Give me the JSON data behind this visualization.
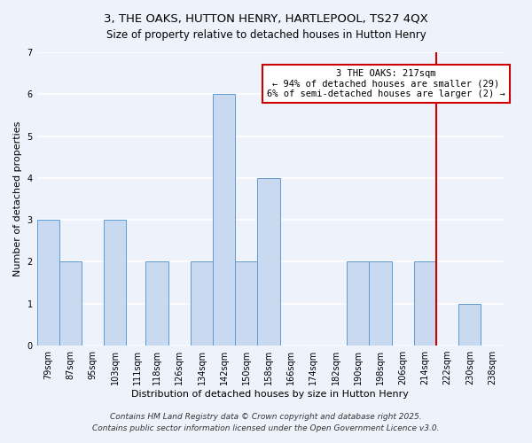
{
  "title": "3, THE OAKS, HUTTON HENRY, HARTLEPOOL, TS27 4QX",
  "subtitle": "Size of property relative to detached houses in Hutton Henry",
  "xlabel": "Distribution of detached houses by size in Hutton Henry",
  "ylabel": "Number of detached properties",
  "bin_labels": [
    "79sqm",
    "87sqm",
    "95sqm",
    "103sqm",
    "111sqm",
    "118sqm",
    "126sqm",
    "134sqm",
    "142sqm",
    "150sqm",
    "158sqm",
    "166sqm",
    "174sqm",
    "182sqm",
    "190sqm",
    "198sqm",
    "206sqm",
    "214sqm",
    "222sqm",
    "230sqm",
    "238sqm"
  ],
  "bar_values": [
    3,
    2,
    0,
    3,
    0,
    2,
    0,
    2,
    6,
    2,
    4,
    0,
    0,
    0,
    2,
    2,
    0,
    2,
    0,
    1,
    0
  ],
  "bar_color": "#c8d9f0",
  "bar_edge_color": "#5b9bd5",
  "vline_x_label": "214sqm",
  "vline_color": "#cc0000",
  "annotation_text": "3 THE OAKS: 217sqm\n← 94% of detached houses are smaller (29)\n6% of semi-detached houses are larger (2) →",
  "annotation_box_color": "white",
  "annotation_box_edge_color": "#cc0000",
  "ylim": [
    0,
    7
  ],
  "yticks": [
    0,
    1,
    2,
    3,
    4,
    5,
    6,
    7
  ],
  "background_color": "#eef2fb",
  "grid_color": "white",
  "footer_line1": "Contains HM Land Registry data © Crown copyright and database right 2025.",
  "footer_line2": "Contains public sector information licensed under the Open Government Licence v3.0.",
  "title_fontsize": 9.5,
  "subtitle_fontsize": 8.5,
  "xlabel_fontsize": 8,
  "ylabel_fontsize": 8,
  "tick_fontsize": 7,
  "annotation_fontsize": 7.5,
  "footer_fontsize": 6.5
}
